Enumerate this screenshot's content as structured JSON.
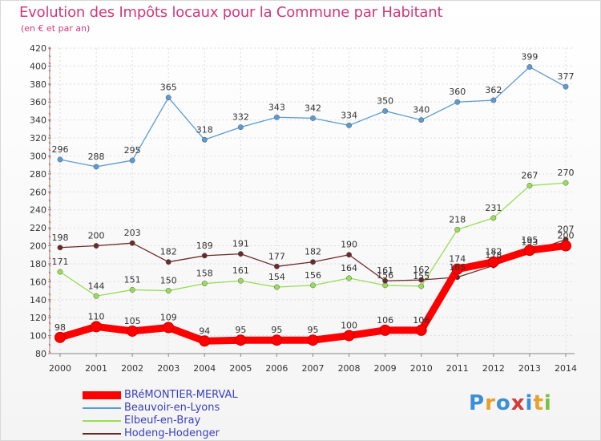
{
  "chart_data": {
    "type": "line",
    "title": "Evolution des Impôts locaux pour la Commune par Habitant",
    "subtitle": "(en € et par an)",
    "x": [
      "2000",
      "2001",
      "2002",
      "2003",
      "2004",
      "2005",
      "2006",
      "2007",
      "2008",
      "2009",
      "2010",
      "2011",
      "2012",
      "2013",
      "2014"
    ],
    "ylim": [
      80,
      420
    ],
    "yticks": [
      80,
      100,
      120,
      140,
      160,
      180,
      200,
      220,
      240,
      260,
      280,
      300,
      320,
      340,
      360,
      380,
      400,
      420
    ],
    "grid": true,
    "legend_position": "bottom-left",
    "series": [
      {
        "name": "BRéMONTIER-MERVAL",
        "color": "#ff0000",
        "values": [
          98,
          110,
          105,
          109,
          94,
          95,
          95,
          95,
          100,
          106,
          106,
          174,
          182,
          195,
          200
        ]
      },
      {
        "name": "Beauvoir-en-Lyons",
        "color": "#5b9bd5",
        "values": [
          296,
          288,
          295,
          365,
          318,
          332,
          343,
          342,
          334,
          350,
          340,
          360,
          362,
          399,
          377
        ]
      },
      {
        "name": "Elbeuf-en-Bray",
        "color": "#99dd55",
        "values": [
          171,
          144,
          151,
          150,
          158,
          161,
          154,
          156,
          164,
          156,
          155,
          218,
          231,
          267,
          270
        ]
      },
      {
        "name": "Hodeng-Hodenger",
        "color": "#6b2a2a",
        "values": [
          198,
          200,
          203,
          182,
          189,
          191,
          177,
          182,
          190,
          161,
          162,
          165,
          178,
          193,
          207
        ]
      }
    ]
  },
  "logo": {
    "letters": [
      "P",
      "r",
      "o",
      "x",
      "i",
      "t",
      "i"
    ],
    "colors": [
      "#3b8fd8",
      "#e8a02a",
      "#3b8fd8",
      "#d43a3a",
      "#3b8fd8",
      "#e8a02a",
      "#7cc242"
    ]
  }
}
